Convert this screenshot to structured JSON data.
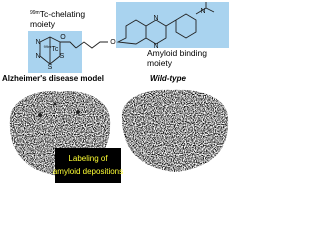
{
  "figure": {
    "chelating_label": {
      "isotope": "99m",
      "line1": "Tc-chelating",
      "line2": "moiety"
    },
    "binding_label": {
      "line1": "Amyloid binding",
      "line2": "moiety"
    },
    "chelate_atoms": {
      "n1": "N",
      "o": "O",
      "isotope": "99m",
      "metal": "Tc",
      "n2": "N",
      "s1": "S",
      "s2": "S"
    },
    "binding_atoms": {
      "linker_o": "O",
      "n_top": "N",
      "n_bottom": "N",
      "amine": "N"
    },
    "left_panel": {
      "title": "Alzheimer's disease model",
      "callout_line1": "Labeling of",
      "callout_line2": "amyloid depositions"
    },
    "right_panel": {
      "title": "Wild-type"
    }
  }
}
